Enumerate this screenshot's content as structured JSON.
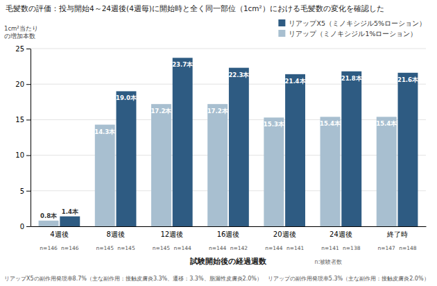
{
  "chart_data": {
    "type": "bar",
    "title": "毛髪数の評価：投与開始4～24週後(4週毎)に開始時と全く同一部位（1cm²）における毛髪数の変化を確認した",
    "ylabel": [
      "1cm²当たり",
      "の増加本数"
    ],
    "xlabel": "試験開始後の経過週数",
    "annotations": [
      "n:被験者数",
      "リアップX5の副作用発現率8.7%（主な副作用：接触皮膚炎3.3%、遷移：3.3%、脂漏性皮膚炎2.0%）　リアップの副作用発現率5.3%（主な副作用：接触皮膚炎2.0%）"
    ],
    "categories": [
      "4週後",
      "8週後",
      "12週後",
      "16週後",
      "20週後",
      "24週後",
      "終了時"
    ],
    "series": [
      {
        "name": "リアップ（ミノキシジル1%ローション）",
        "color": "#a8bfd0",
        "values": [
          0.8,
          14.3,
          17.2,
          17.2,
          15.3,
          15.4,
          15.4
        ],
        "value_labels": [
          "0.8本",
          "14.3本",
          "17.2本",
          "17.2本",
          "15.3本",
          "15.4本",
          "15.4本"
        ],
        "n_labels": [
          "n=146",
          "n=145",
          "n=145",
          "n=144",
          "n=144",
          "n=141",
          "n=147"
        ]
      },
      {
        "name": "リアップX5（ミノキシジル5%ローション）",
        "color": "#2e5b82",
        "values": [
          1.4,
          19.0,
          23.7,
          22.3,
          21.4,
          21.8,
          21.6
        ],
        "value_labels": [
          "1.4本",
          "19.0本",
          "23.7本",
          "22.3本",
          "21.4本",
          "21.8本",
          "21.6本"
        ],
        "n_labels": [
          "n=146",
          "n=145",
          "n=144",
          "n=142",
          "n=141",
          "n=138",
          "n=148"
        ]
      }
    ],
    "ylim": [
      0,
      25
    ],
    "yticks": [
      0,
      5,
      10,
      15,
      20,
      25
    ],
    "grid": true,
    "legend": "top",
    "data_labels": true
  }
}
